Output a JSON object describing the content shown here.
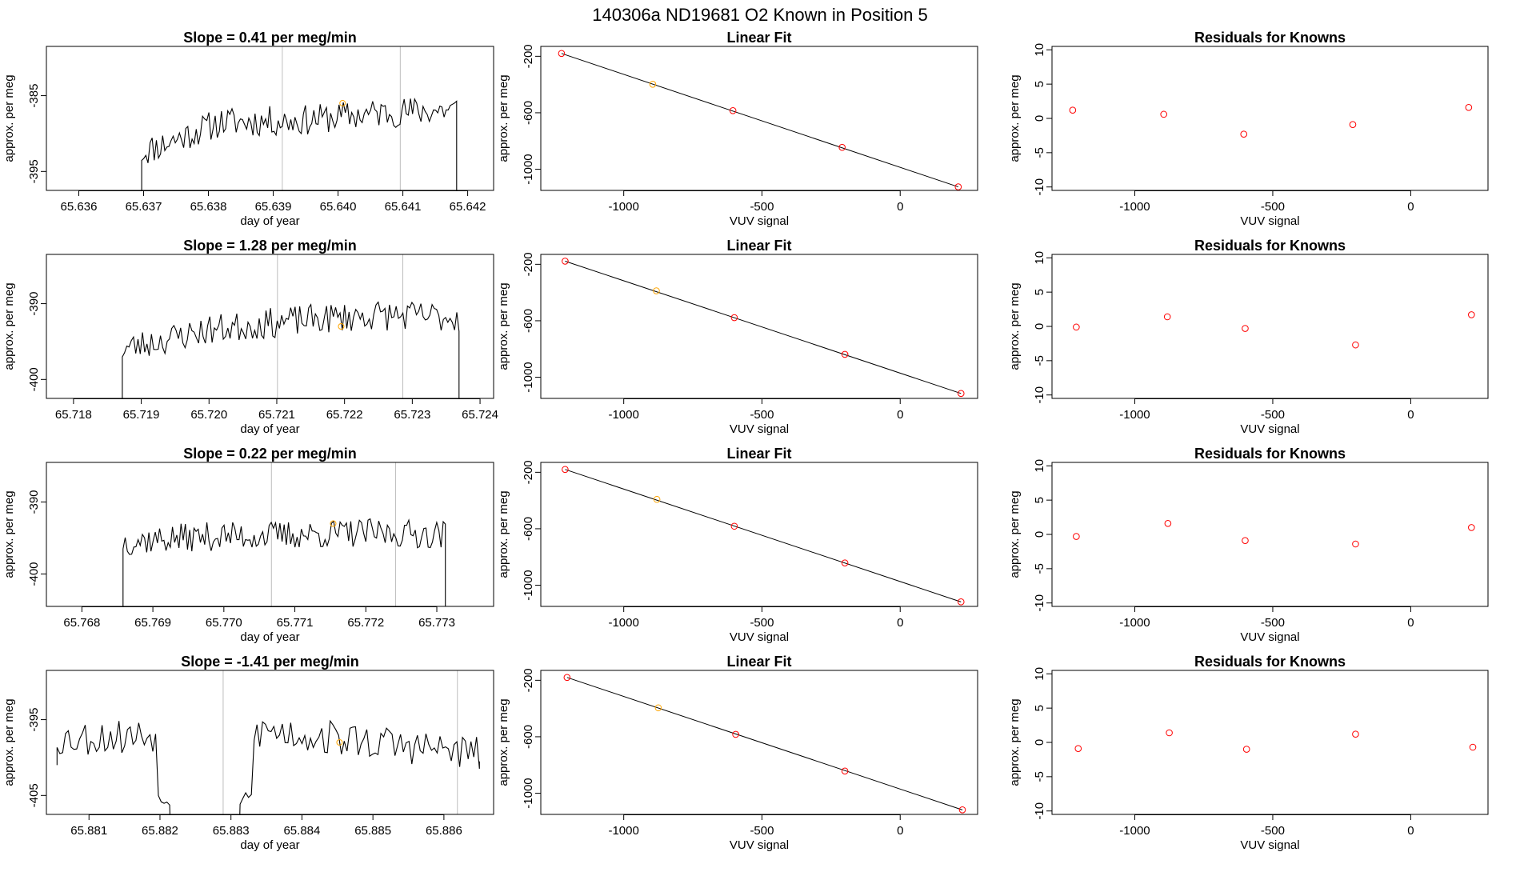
{
  "figure": {
    "main_title": "140306a      ND19681    O2 Known in Position  5"
  },
  "chart_data": [
    {
      "type": "line",
      "panel": "time-series",
      "row": 1,
      "title": "Slope =  0.41  per meg/min",
      "xlabel": "day of year",
      "ylabel": "approx. per meg",
      "xlim": [
        65.6355,
        65.6424
      ],
      "ylim": [
        -397.5,
        -378.5
      ],
      "x_ticks": [
        65.636,
        65.637,
        65.638,
        65.639,
        65.64,
        65.641,
        65.642
      ],
      "x_tick_labels": [
        "65.636",
        "65.637",
        "65.638",
        "65.639",
        "65.640",
        "65.641",
        "65.642"
      ],
      "y_ticks": [
        -385,
        -395
      ],
      "y_tick_labels": [
        "-385",
        "-395"
      ],
      "vlines": [
        65.63914,
        65.64096
      ],
      "trace": {
        "start": 65.63697,
        "end": 65.64183,
        "drop_start": -398.5,
        "drop_end": -398.5,
        "base": [
          -392.5,
          -388.5,
          -388.3,
          -387.3,
          -386.8
        ],
        "seed": 11,
        "amp": 2.0
      },
      "highlight_point": {
        "x": 65.64007,
        "y": -386.0
      },
      "line_color": "#000000",
      "vline_color": "#bebebe",
      "highlight_color": "#ffa500"
    },
    {
      "type": "line",
      "panel": "linear-fit",
      "row": 1,
      "title": "Linear Fit",
      "xlabel": "VUV signal",
      "ylabel": "approx. per meg",
      "xlim": [
        -1300,
        280
      ],
      "ylim": [
        -1150,
        -130
      ],
      "x_ticks": [
        -1000,
        -500,
        0
      ],
      "x_tick_labels": [
        "-1000",
        "-500",
        "0"
      ],
      "y_ticks": [
        -200,
        -600,
        -1000
      ],
      "y_tick_labels": [
        "-200",
        "-600",
        "-1000"
      ],
      "points": [
        {
          "x": -1225,
          "y": -180,
          "color": "#ff0000"
        },
        {
          "x": -895,
          "y": -398,
          "color": "#ffa500"
        },
        {
          "x": -605,
          "y": -585,
          "color": "#ff0000"
        },
        {
          "x": -210,
          "y": -845,
          "color": "#ff0000"
        },
        {
          "x": 210,
          "y": -1125,
          "color": "#ff0000"
        }
      ],
      "fit_line": {
        "x": [
          -1225,
          210
        ],
        "y": [
          -180,
          -1125
        ]
      },
      "line_color": "#000000"
    },
    {
      "type": "scatter",
      "panel": "residuals",
      "row": 1,
      "title": "Residuals for Knowns",
      "xlabel": "VUV signal",
      "ylabel": "approx. per meg",
      "xlim": [
        -1300,
        280
      ],
      "ylim": [
        -10.5,
        10.5
      ],
      "x_ticks": [
        -1000,
        -500,
        0
      ],
      "x_tick_labels": [
        "-1000",
        "-500",
        "0"
      ],
      "y_ticks": [
        10,
        5,
        0,
        -5,
        -10
      ],
      "y_tick_labels": [
        "10",
        "5",
        "0",
        "-5",
        "-10"
      ],
      "points": [
        {
          "x": -1225,
          "y": 1.2
        },
        {
          "x": -895,
          "y": 0.6
        },
        {
          "x": -605,
          "y": -2.3
        },
        {
          "x": -210,
          "y": -0.9
        },
        {
          "x": 210,
          "y": 1.6
        }
      ],
      "point_color": "#ff0000"
    },
    {
      "type": "line",
      "panel": "time-series",
      "row": 2,
      "title": "Slope =  1.28  per meg/min",
      "xlabel": "day of year",
      "ylabel": "approx. per meg",
      "xlim": [
        65.7176,
        65.7242
      ],
      "ylim": [
        -402.5,
        -383.5
      ],
      "x_ticks": [
        65.718,
        65.719,
        65.72,
        65.721,
        65.722,
        65.723,
        65.724
      ],
      "x_tick_labels": [
        "65.718",
        "65.719",
        "65.720",
        "65.721",
        "65.722",
        "65.723",
        "65.724"
      ],
      "y_ticks": [
        -390,
        -400
      ],
      "y_tick_labels": [
        "-390",
        "-400"
      ],
      "vlines": [
        65.72101,
        65.72286
      ],
      "trace": {
        "start": 65.71872,
        "end": 65.72369,
        "drop_start": -403.5,
        "drop_end": -403.5,
        "base": [
          -396.0,
          -393.5,
          -392.3,
          -391.5,
          -391.8
        ],
        "seed": 23,
        "amp": 2.0
      },
      "highlight_point": {
        "x": 65.72195,
        "y": -393.0
      },
      "line_color": "#000000",
      "vline_color": "#bebebe",
      "highlight_color": "#ffa500"
    },
    {
      "type": "line",
      "panel": "linear-fit",
      "row": 2,
      "title": "Linear Fit",
      "xlabel": "VUV signal",
      "ylabel": "approx. per meg",
      "xlim": [
        -1300,
        280
      ],
      "ylim": [
        -1150,
        -130
      ],
      "x_ticks": [
        -1000,
        -500,
        0
      ],
      "x_tick_labels": [
        "-1000",
        "-500",
        "0"
      ],
      "y_ticks": [
        -200,
        -600,
        -1000
      ],
      "y_tick_labels": [
        "-200",
        "-600",
        "-1000"
      ],
      "points": [
        {
          "x": -1212,
          "y": -178,
          "color": "#ff0000"
        },
        {
          "x": -882,
          "y": -388,
          "color": "#ffa500"
        },
        {
          "x": -600,
          "y": -578,
          "color": "#ff0000"
        },
        {
          "x": -200,
          "y": -838,
          "color": "#ff0000"
        },
        {
          "x": 220,
          "y": -1115,
          "color": "#ff0000"
        }
      ],
      "fit_line": {
        "x": [
          -1212,
          220
        ],
        "y": [
          -178,
          -1115
        ]
      },
      "line_color": "#000000"
    },
    {
      "type": "scatter",
      "panel": "residuals",
      "row": 2,
      "title": "Residuals for Knowns",
      "xlabel": "VUV signal",
      "ylabel": "approx. per meg",
      "xlim": [
        -1300,
        280
      ],
      "ylim": [
        -10.5,
        10.5
      ],
      "x_ticks": [
        -1000,
        -500,
        0
      ],
      "x_tick_labels": [
        "-1000",
        "-500",
        "0"
      ],
      "y_ticks": [
        10,
        5,
        0,
        -5,
        -10
      ],
      "y_tick_labels": [
        "10",
        "5",
        "0",
        "-5",
        "-10"
      ],
      "points": [
        {
          "x": -1212,
          "y": -0.1
        },
        {
          "x": -882,
          "y": 1.4
        },
        {
          "x": -600,
          "y": -0.3
        },
        {
          "x": -200,
          "y": -2.7
        },
        {
          "x": 220,
          "y": 1.7
        }
      ],
      "point_color": "#ff0000"
    },
    {
      "type": "line",
      "panel": "time-series",
      "row": 3,
      "title": "Slope =  0.22  per meg/min",
      "xlabel": "day of year",
      "ylabel": "approx. per meg",
      "xlim": [
        65.7675,
        65.7738
      ],
      "ylim": [
        -404.5,
        -384.5
      ],
      "x_ticks": [
        65.768,
        65.769,
        65.77,
        65.771,
        65.772,
        65.773
      ],
      "x_tick_labels": [
        "65.768",
        "65.769",
        "65.770",
        "65.771",
        "65.772",
        "65.773"
      ],
      "y_ticks": [
        -390,
        -400
      ],
      "y_tick_labels": [
        "-390",
        "-400"
      ],
      "vlines": [
        65.77067,
        65.77242
      ],
      "trace": {
        "start": 65.76858,
        "end": 65.77312,
        "drop_start": -405.5,
        "drop_end": -405.5,
        "base": [
          -395.5,
          -394.8,
          -394.6,
          -394.3,
          -394.5
        ],
        "seed": 37,
        "amp": 2.0
      },
      "highlight_point": {
        "x": 65.77154,
        "y": -393.0
      },
      "line_color": "#000000",
      "vline_color": "#bebebe",
      "highlight_color": "#ffa500"
    },
    {
      "type": "line",
      "panel": "linear-fit",
      "row": 3,
      "title": "Linear Fit",
      "xlabel": "VUV signal",
      "ylabel": "approx. per meg",
      "xlim": [
        -1300,
        280
      ],
      "ylim": [
        -1150,
        -130
      ],
      "x_ticks": [
        -1000,
        -500,
        0
      ],
      "x_tick_labels": [
        "-1000",
        "-500",
        "0"
      ],
      "y_ticks": [
        -200,
        -600,
        -1000
      ],
      "y_tick_labels": [
        "-200",
        "-600",
        "-1000"
      ],
      "points": [
        {
          "x": -1212,
          "y": -180,
          "color": "#ff0000"
        },
        {
          "x": -880,
          "y": -392,
          "color": "#ffa500"
        },
        {
          "x": -600,
          "y": -582,
          "color": "#ff0000"
        },
        {
          "x": -200,
          "y": -842,
          "color": "#ff0000"
        },
        {
          "x": 220,
          "y": -1118,
          "color": "#ff0000"
        }
      ],
      "fit_line": {
        "x": [
          -1212,
          220
        ],
        "y": [
          -180,
          -1118
        ]
      },
      "line_color": "#000000"
    },
    {
      "type": "scatter",
      "panel": "residuals",
      "row": 3,
      "title": "Residuals for Knowns",
      "xlabel": "VUV signal",
      "ylabel": "approx. per meg",
      "xlim": [
        -1300,
        280
      ],
      "ylim": [
        -10.5,
        10.5
      ],
      "x_ticks": [
        -1000,
        -500,
        0
      ],
      "x_tick_labels": [
        "-1000",
        "-500",
        "0"
      ],
      "y_ticks": [
        10,
        5,
        0,
        -5,
        -10
      ],
      "y_tick_labels": [
        "10",
        "5",
        "0",
        "-5",
        "-10"
      ],
      "points": [
        {
          "x": -1212,
          "y": -0.3
        },
        {
          "x": -880,
          "y": 1.6
        },
        {
          "x": -600,
          "y": -0.9
        },
        {
          "x": -200,
          "y": -1.4
        },
        {
          "x": 220,
          "y": 1.0
        }
      ],
      "point_color": "#ff0000"
    },
    {
      "type": "line",
      "panel": "time-series",
      "row": 4,
      "title": "Slope =  -1.41  per meg/min",
      "xlabel": "day of year",
      "ylabel": "approx. per meg",
      "xlim": [
        65.8804,
        65.8867
      ],
      "ylim": [
        -407.5,
        -388.5
      ],
      "x_ticks": [
        65.881,
        65.882,
        65.883,
        65.884,
        65.885,
        65.886
      ],
      "x_tick_labels": [
        "65.881",
        "65.882",
        "65.883",
        "65.884",
        "65.885",
        "65.886"
      ],
      "y_ticks": [
        -395,
        -405
      ],
      "y_tick_labels": [
        "-395",
        "-405"
      ],
      "vlines": [
        65.88289,
        65.88619
      ],
      "trace": {
        "start": 65.88055,
        "end": 65.8865,
        "drop_start": -401.0,
        "drop_end": -400.5,
        "base": [
          -397.5,
          -397.0,
          -396.5,
          -398.0,
          -399.5
        ],
        "seed": 53,
        "amp": 2.4,
        "gap": [
          65.88195,
          65.8833
        ]
      },
      "highlight_point": {
        "x": 65.88453,
        "y": -398.0
      },
      "line_color": "#000000",
      "vline_color": "#bebebe",
      "highlight_color": "#ffa500"
    },
    {
      "type": "line",
      "panel": "linear-fit",
      "row": 4,
      "title": "Linear Fit",
      "xlabel": "VUV signal",
      "ylabel": "approx. per meg",
      "xlim": [
        -1300,
        280
      ],
      "ylim": [
        -1150,
        -130
      ],
      "x_ticks": [
        -1000,
        -500,
        0
      ],
      "x_tick_labels": [
        "-1000",
        "-500",
        "0"
      ],
      "y_ticks": [
        -200,
        -600,
        -1000
      ],
      "y_tick_labels": [
        "-200",
        "-600",
        "-1000"
      ],
      "points": [
        {
          "x": -1205,
          "y": -180,
          "color": "#ff0000"
        },
        {
          "x": -875,
          "y": -395,
          "color": "#ffa500"
        },
        {
          "x": -595,
          "y": -583,
          "color": "#ff0000"
        },
        {
          "x": -200,
          "y": -843,
          "color": "#ff0000"
        },
        {
          "x": 225,
          "y": -1118,
          "color": "#ff0000"
        }
      ],
      "fit_line": {
        "x": [
          -1205,
          225
        ],
        "y": [
          -180,
          -1118
        ]
      },
      "line_color": "#000000"
    },
    {
      "type": "scatter",
      "panel": "residuals",
      "row": 4,
      "title": "Residuals for Knowns",
      "xlabel": "VUV signal",
      "ylabel": "approx. per meg",
      "xlim": [
        -1300,
        280
      ],
      "ylim": [
        -10.5,
        10.5
      ],
      "x_ticks": [
        -1000,
        -500,
        0
      ],
      "x_tick_labels": [
        "-1000",
        "-500",
        "0"
      ],
      "y_ticks": [
        10,
        5,
        0,
        -5,
        -10
      ],
      "y_tick_labels": [
        "10",
        "5",
        "0",
        "-5",
        "-10"
      ],
      "points": [
        {
          "x": -1205,
          "y": -0.9
        },
        {
          "x": -875,
          "y": 1.4
        },
        {
          "x": -595,
          "y": -1.0
        },
        {
          "x": -200,
          "y": 1.2
        },
        {
          "x": 225,
          "y": -0.7
        }
      ],
      "point_color": "#ff0000"
    }
  ]
}
